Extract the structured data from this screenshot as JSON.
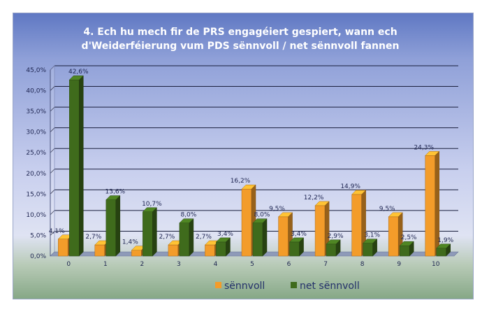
{
  "chart_data": {
    "type": "bar",
    "title_lines": [
      "4. Ech hu mech fir de PRS engagéiert gespiert, wann ech",
      "d'Weiderféierung vum PDS sënnvoll / net sënnvoll fannen"
    ],
    "categories": [
      "0",
      "1",
      "2",
      "3",
      "4",
      "5",
      "6",
      "7",
      "8",
      "9",
      "10"
    ],
    "series": [
      {
        "name": "sënnvoll",
        "color": "#f39c2a",
        "values": [
          4.1,
          2.7,
          1.4,
          2.7,
          2.7,
          16.2,
          9.5,
          12.2,
          14.9,
          9.5,
          24.3
        ],
        "labels": [
          "4,1%",
          "2,7%",
          "1,4%",
          "2,7%",
          "2,7%",
          "16,2%",
          "9,5%",
          "12,2%",
          "14,9%",
          "9,5%",
          "24,3%"
        ]
      },
      {
        "name": "net sënnvoll",
        "color": "#3f6b1c",
        "values": [
          42.6,
          13.6,
          10.7,
          8.0,
          3.4,
          8.0,
          3.4,
          2.9,
          3.1,
          2.5,
          1.9
        ],
        "labels": [
          "42,6%",
          "13,6%",
          "10,7%",
          "8,0%",
          "3,4%",
          "8,0%",
          "3,4%",
          "2,9%",
          "3,1%",
          "2,5%",
          "1,9%"
        ]
      }
    ],
    "yticks": [
      0,
      5,
      10,
      15,
      20,
      25,
      30,
      35,
      40,
      45
    ],
    "ytick_labels": [
      "0,0%",
      "5,0%",
      "10,0%",
      "15,0%",
      "20,0%",
      "25,0%",
      "30,0%",
      "35,0%",
      "40,0%",
      "45,0%"
    ],
    "ylim": [
      0,
      45
    ],
    "grid": true,
    "legend_position": "bottom"
  }
}
